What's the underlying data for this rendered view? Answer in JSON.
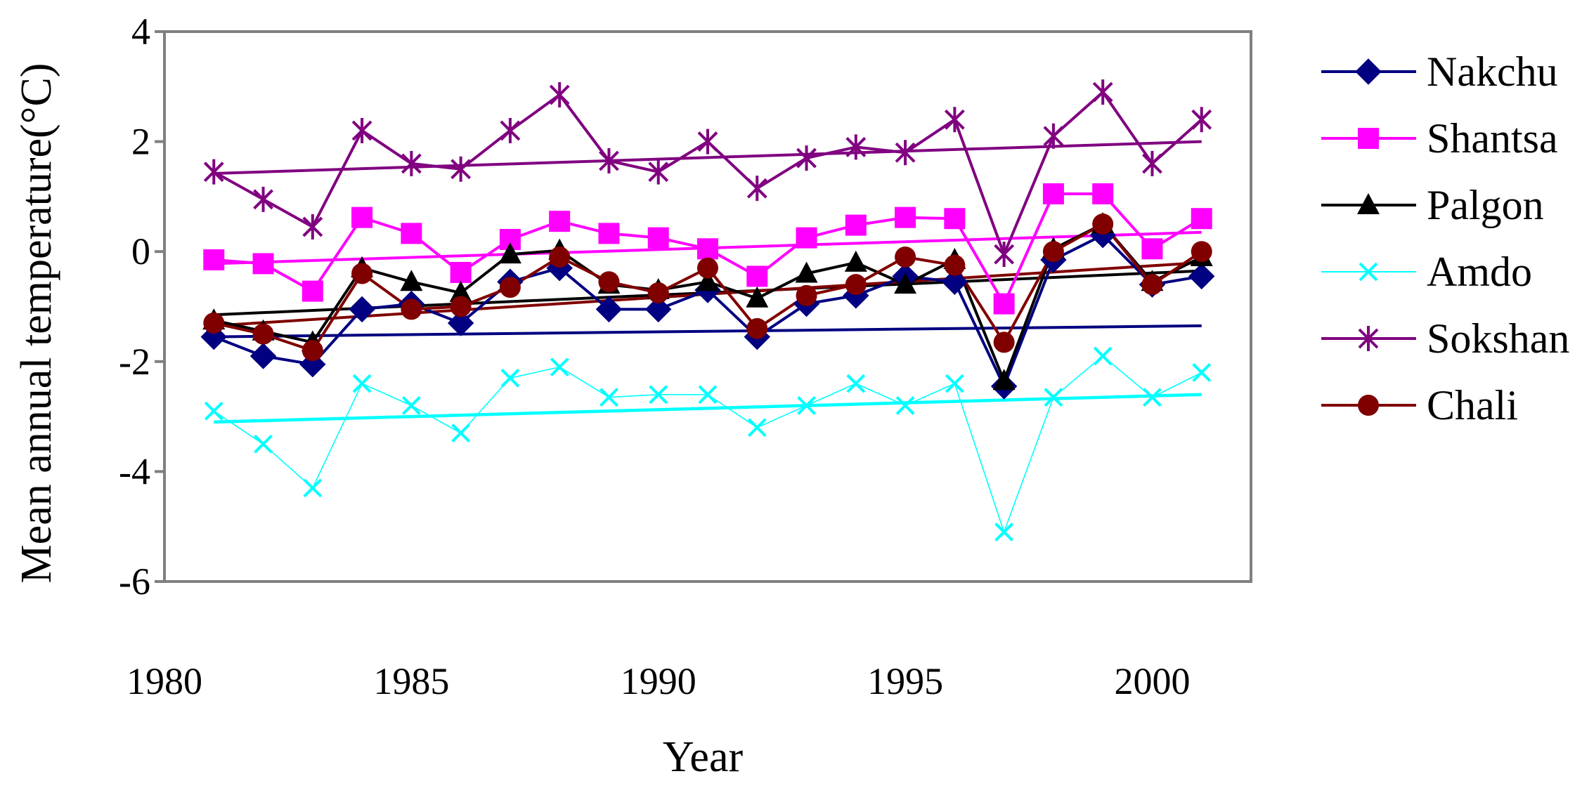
{
  "chart_data": {
    "type": "line",
    "title": "",
    "xlabel": "Year",
    "ylabel": "Mean annual temperature(°C)",
    "xlim": [
      1980,
      2002
    ],
    "ylim": [
      -6,
      4
    ],
    "x_ticks": [
      1980,
      1985,
      1990,
      1995,
      2000
    ],
    "y_ticks": [
      4,
      2,
      0,
      -2,
      -4,
      -6
    ],
    "grid": false,
    "legend_position": "right",
    "x": [
      1981,
      1982,
      1983,
      1984,
      1985,
      1986,
      1987,
      1988,
      1989,
      1990,
      1991,
      1992,
      1993,
      1994,
      1995,
      1996,
      1997,
      1998,
      1999,
      2000,
      2001
    ],
    "series": [
      {
        "name": "Nakchu",
        "color": "#000080",
        "marker": "diamond",
        "values": [
          -1.55,
          -1.9,
          -2.05,
          -1.05,
          -0.95,
          -1.3,
          -0.55,
          -0.3,
          -1.05,
          -1.05,
          -0.7,
          -1.55,
          -0.95,
          -0.8,
          -0.45,
          -0.55,
          -2.45,
          -0.15,
          0.3,
          -0.6,
          -0.45
        ],
        "trend": [
          -1.55,
          -1.35
        ]
      },
      {
        "name": "Shantsa",
        "color": "#ff00ff",
        "marker": "square",
        "values": [
          -0.15,
          -0.22,
          -0.72,
          0.62,
          0.33,
          -0.38,
          0.22,
          0.55,
          0.33,
          0.25,
          0.05,
          -0.45,
          0.25,
          0.48,
          0.62,
          0.6,
          -0.95,
          1.05,
          1.05,
          0.05,
          0.6
        ],
        "trend": [
          -0.22,
          0.35
        ]
      },
      {
        "name": "Palgon",
        "color": "#000000",
        "marker": "triangle",
        "values": [
          -1.25,
          -1.45,
          -1.65,
          -0.3,
          -0.55,
          -0.75,
          -0.05,
          0.02,
          -0.6,
          -0.7,
          -0.55,
          -0.85,
          -0.4,
          -0.2,
          -0.6,
          -0.15,
          -2.35,
          0.05,
          0.5,
          -0.55,
          -0.1
        ],
        "trend": [
          -1.15,
          -0.35
        ]
      },
      {
        "name": "Amdo",
        "color": "#00ffff",
        "marker": "x",
        "values": [
          -2.9,
          -3.5,
          -4.3,
          -2.4,
          -2.8,
          -3.3,
          -2.3,
          -2.1,
          -2.65,
          -2.6,
          -2.6,
          -3.2,
          -2.8,
          -2.4,
          -2.8,
          -2.4,
          -5.1,
          -2.65,
          -1.9,
          -2.65,
          -2.2
        ],
        "trend": [
          -3.1,
          -2.6
        ]
      },
      {
        "name": "Sokshan",
        "color": "#800080",
        "marker": "star",
        "values": [
          1.45,
          0.95,
          0.45,
          2.2,
          1.6,
          1.5,
          2.2,
          2.85,
          1.65,
          1.45,
          2.0,
          1.15,
          1.7,
          1.9,
          1.8,
          2.4,
          -0.05,
          2.1,
          2.9,
          1.6,
          2.4
        ],
        "trend": [
          1.42,
          2.0
        ]
      },
      {
        "name": "Chali",
        "color": "#800000",
        "marker": "circle",
        "values": [
          -1.3,
          -1.5,
          -1.8,
          -0.4,
          -1.05,
          -1.0,
          -0.65,
          -0.1,
          -0.55,
          -0.75,
          -0.3,
          -1.4,
          -0.8,
          -0.6,
          -0.1,
          -0.25,
          -1.65,
          0.0,
          0.5,
          -0.6,
          0.0
        ],
        "trend": [
          -1.35,
          -0.2
        ]
      }
    ]
  }
}
